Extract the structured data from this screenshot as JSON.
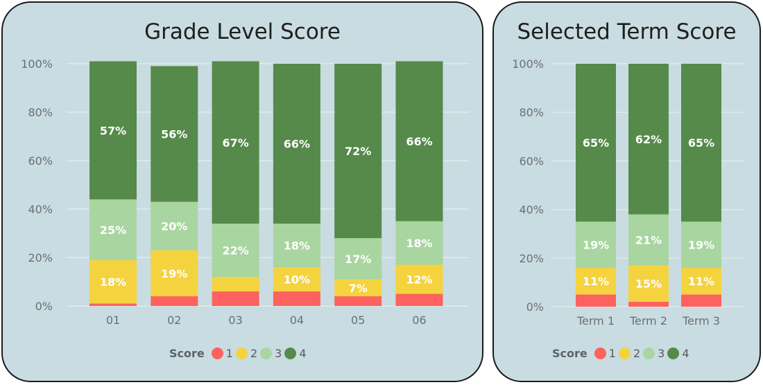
{
  "colors": {
    "score_1": "#fd625e",
    "score_2": "#f5d33f",
    "score_3": "#a9d5a0",
    "score_4": "#558a4a",
    "panel_bg": "#c9dce1",
    "gridline": "#e6eef0"
  },
  "legend": {
    "title": "Score",
    "items": [
      "1",
      "2",
      "3",
      "4"
    ]
  },
  "chart_data": [
    {
      "type": "bar",
      "stacked": "percent",
      "title": "Grade Level Score",
      "categories": [
        "01",
        "02",
        "03",
        "04",
        "05",
        "06"
      ],
      "ylim": [
        0,
        100
      ],
      "yticks": [
        "0%",
        "20%",
        "40%",
        "60%",
        "80%",
        "100%"
      ],
      "series": [
        {
          "name": "1",
          "values": [
            1,
            4,
            6,
            6,
            4,
            5
          ],
          "labels": [
            "",
            "",
            "",
            "",
            "",
            ""
          ]
        },
        {
          "name": "2",
          "values": [
            18,
            19,
            6,
            10,
            7,
            12
          ],
          "labels": [
            "18%",
            "19%",
            "",
            "10%",
            "7%",
            "12%"
          ]
        },
        {
          "name": "3",
          "values": [
            25,
            20,
            22,
            18,
            17,
            18
          ],
          "labels": [
            "25%",
            "20%",
            "22%",
            "18%",
            "17%",
            "18%"
          ]
        },
        {
          "name": "4",
          "values": [
            57,
            56,
            67,
            66,
            72,
            66
          ],
          "labels": [
            "57%",
            "56%",
            "67%",
            "66%",
            "72%",
            "66%"
          ]
        }
      ],
      "legend_position": "bottom-center",
      "grid": true
    },
    {
      "type": "bar",
      "stacked": "percent",
      "title": "Selected Term Score",
      "categories": [
        "Term 1",
        "Term 2",
        "Term 3"
      ],
      "ylim": [
        0,
        100
      ],
      "yticks": [
        "0%",
        "20%",
        "40%",
        "60%",
        "80%",
        "100%"
      ],
      "series": [
        {
          "name": "1",
          "values": [
            5,
            2,
            5
          ],
          "labels": [
            "",
            "",
            ""
          ]
        },
        {
          "name": "2",
          "values": [
            11,
            15,
            11
          ],
          "labels": [
            "11%",
            "15%",
            "11%"
          ]
        },
        {
          "name": "3",
          "values": [
            19,
            21,
            19
          ],
          "labels": [
            "19%",
            "21%",
            "19%"
          ]
        },
        {
          "name": "4",
          "values": [
            65,
            62,
            65
          ],
          "labels": [
            "65%",
            "62%",
            "65%"
          ]
        }
      ],
      "legend_position": "bottom-center",
      "grid": true
    }
  ]
}
